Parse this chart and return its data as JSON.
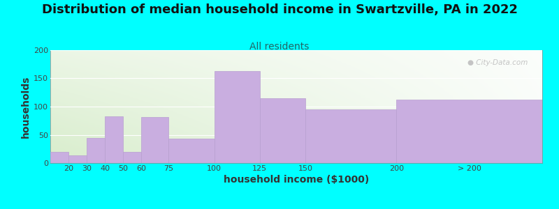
{
  "title": "Distribution of median household income in Swartzville, PA in 2022",
  "subtitle": "All residents",
  "xlabel": "household income ($1000)",
  "ylabel": "households",
  "background_color": "#00ffff",
  "bar_color": "#c9aee0",
  "bar_edge_color": "#b89fd0",
  "bar_positions": [
    10,
    20,
    30,
    40,
    50,
    60,
    75,
    100,
    125,
    150,
    200
  ],
  "bar_widths": [
    10,
    10,
    10,
    10,
    10,
    15,
    25,
    25,
    25,
    50,
    80
  ],
  "values": [
    20,
    13,
    45,
    83,
    20,
    82,
    43,
    163,
    115,
    95,
    112
  ],
  "ylim": [
    0,
    200
  ],
  "yticks": [
    0,
    50,
    100,
    150,
    200
  ],
  "xtick_positions": [
    20,
    30,
    40,
    50,
    60,
    75,
    100,
    125,
    150,
    200,
    240
  ],
  "xtick_labels": [
    "20",
    "30",
    "40",
    "50",
    "60",
    "75",
    "100",
    "125",
    "150",
    "200",
    "> 200"
  ],
  "xlim_left": 10,
  "xlim_right": 280,
  "watermark": "City-Data.com",
  "title_fontsize": 13,
  "subtitle_fontsize": 10,
  "axis_label_fontsize": 10,
  "tick_fontsize": 8,
  "grad_left_color": "#d8edcc",
  "grad_right_color": "#f0f8f0",
  "grad_top_color": "#f8fcf8"
}
